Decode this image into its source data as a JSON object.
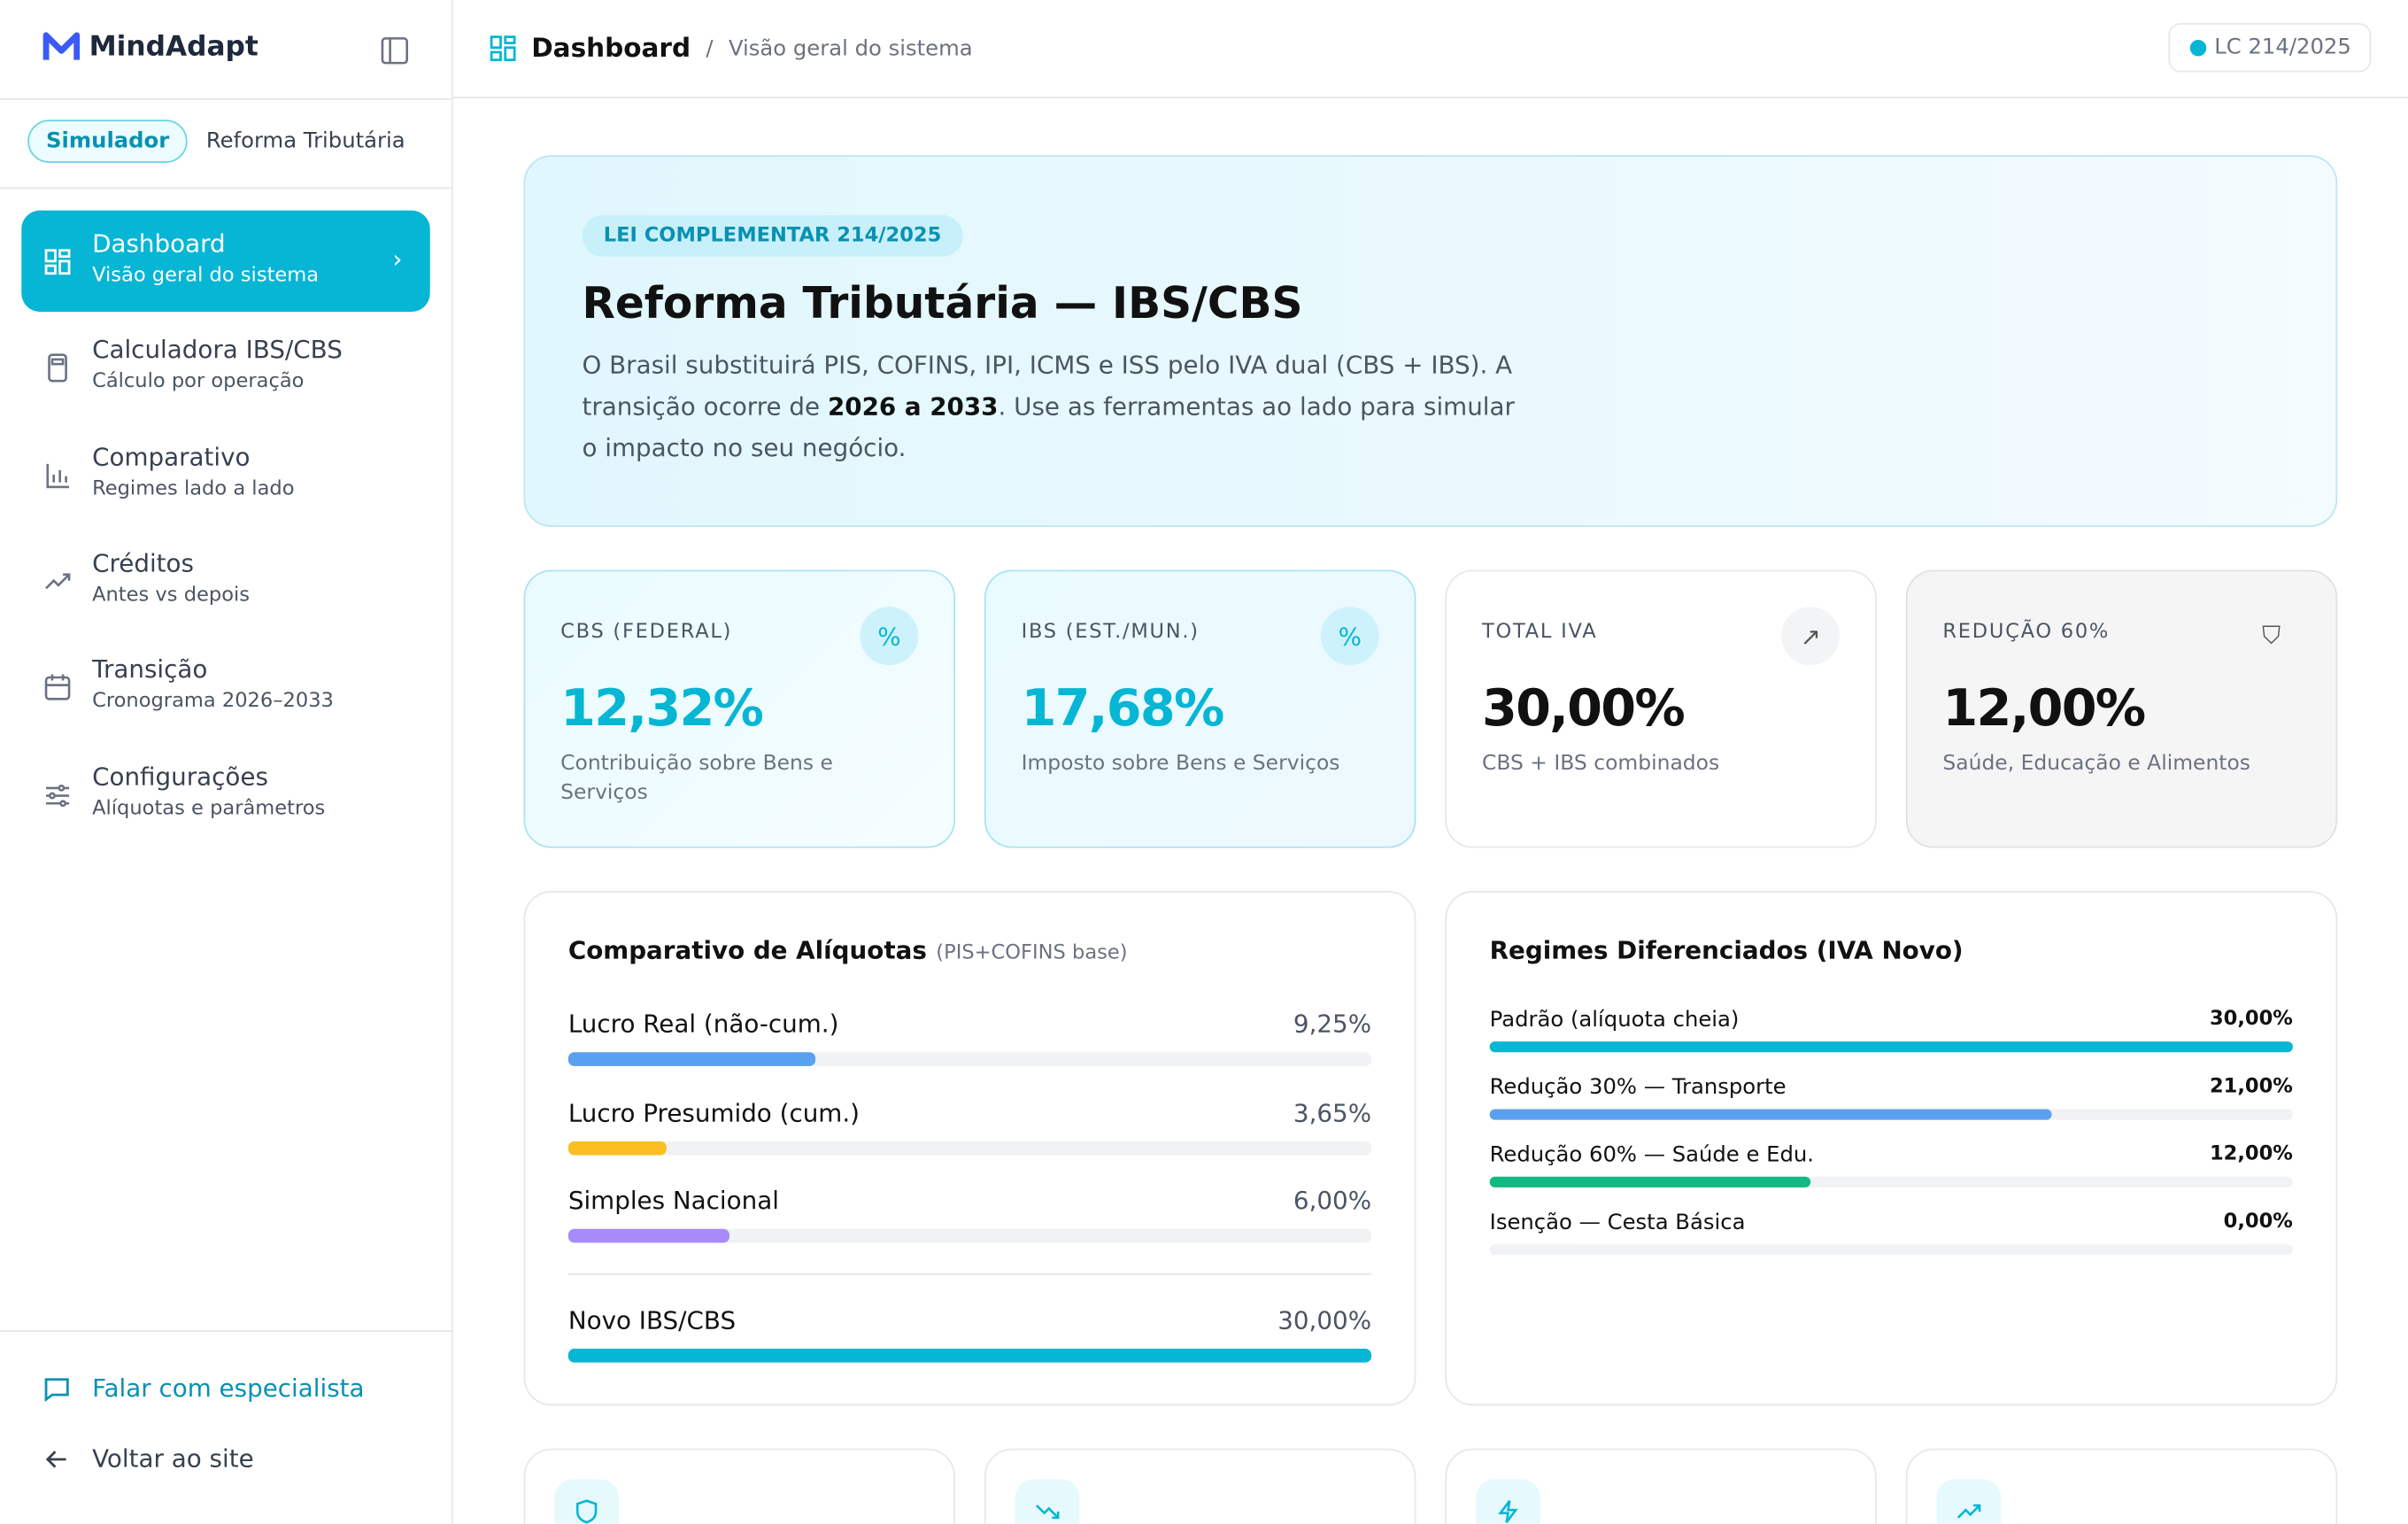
{
  "sidebar": {
    "brand": "MindAdapt",
    "tabs": [
      "Simulador",
      "Reforma Tributária"
    ],
    "nav": [
      {
        "title": "Dashboard",
        "subtitle": "Visão geral do sistema"
      },
      {
        "title": "Calculadora IBS/CBS",
        "subtitle": "Cálculo por operação"
      },
      {
        "title": "Comparativo",
        "subtitle": "Regimes lado a lado"
      },
      {
        "title": "Créditos",
        "subtitle": "Antes vs depois"
      },
      {
        "title": "Transição",
        "subtitle": "Cronograma 2026–2033"
      },
      {
        "title": "Configurações",
        "subtitle": "Alíquotas e parâmetros"
      }
    ],
    "footer": [
      "Falar com especialista",
      "Voltar ao site"
    ]
  },
  "header": {
    "title": "Dashboard",
    "subtitle": "Visão geral do sistema",
    "badge": "LC 214/2025"
  },
  "hero": {
    "tag": "LEI COMPLEMENTAR 214/2025",
    "title": "Reforma Tributária — IBS/CBS",
    "text_before": "O Brasil substituirá PIS, COFINS, IPI, ICMS e ISS pelo IVA dual (CBS + IBS). A transição ocorre de ",
    "text_bold": "2026 a 2033",
    "text_after": ". Use as ferramentas ao lado para simular o impacto no seu negócio."
  },
  "stats": [
    {
      "label": "CBS (FEDERAL)",
      "value": "12,32%",
      "caption": "Contribuição sobre Bens e Serviços"
    },
    {
      "label": "IBS (EST./MUN.)",
      "value": "17,68%",
      "caption": "Imposto sobre Bens e Serviços"
    },
    {
      "label": "TOTAL IVA",
      "value": "30,00%",
      "caption": "CBS + IBS combinados"
    },
    {
      "label": "REDUÇÃO 60%",
      "value": "12,00%",
      "caption": "Saúde, Educação e Alimentos"
    }
  ],
  "comparison": {
    "title": "Comparativo de Alíquotas",
    "note": "(PIS+COFINS base)",
    "items": [
      {
        "label": "Lucro Real (não-cum.)",
        "value": 9.25,
        "value_label": "9,25%",
        "color": "#5aa0f0"
      },
      {
        "label": "Lucro Presumido (cum.)",
        "value": 3.65,
        "value_label": "3,65%",
        "color": "#fbbf24"
      },
      {
        "label": "Simples Nacional",
        "value": 6,
        "value_label": "6,00%",
        "color": "#a78bfa"
      },
      {
        "label": "Novo IBS/CBS",
        "value": 30,
        "value_label": "30,00%",
        "color": "#06b6d4"
      }
    ]
  },
  "regimes": {
    "title": "Regimes Diferenciados (IVA Novo)",
    "items": [
      {
        "label": "Padrão (alíquota cheia)",
        "value": 30,
        "value_label": "30,00%",
        "color": "#06b6d4"
      },
      {
        "label": "Redução 30% — Transporte",
        "value": 21,
        "value_label": "21,00%",
        "color": "#5aa0f0"
      },
      {
        "label": "Redução 60% — Saúde e Edu.",
        "value": 12,
        "value_label": "12,00%",
        "color": "#10b981"
      },
      {
        "label": "Isenção — Cesta Básica",
        "value": 0,
        "value_label": "0,00%",
        "color": "#10b981"
      }
    ]
  }
}
